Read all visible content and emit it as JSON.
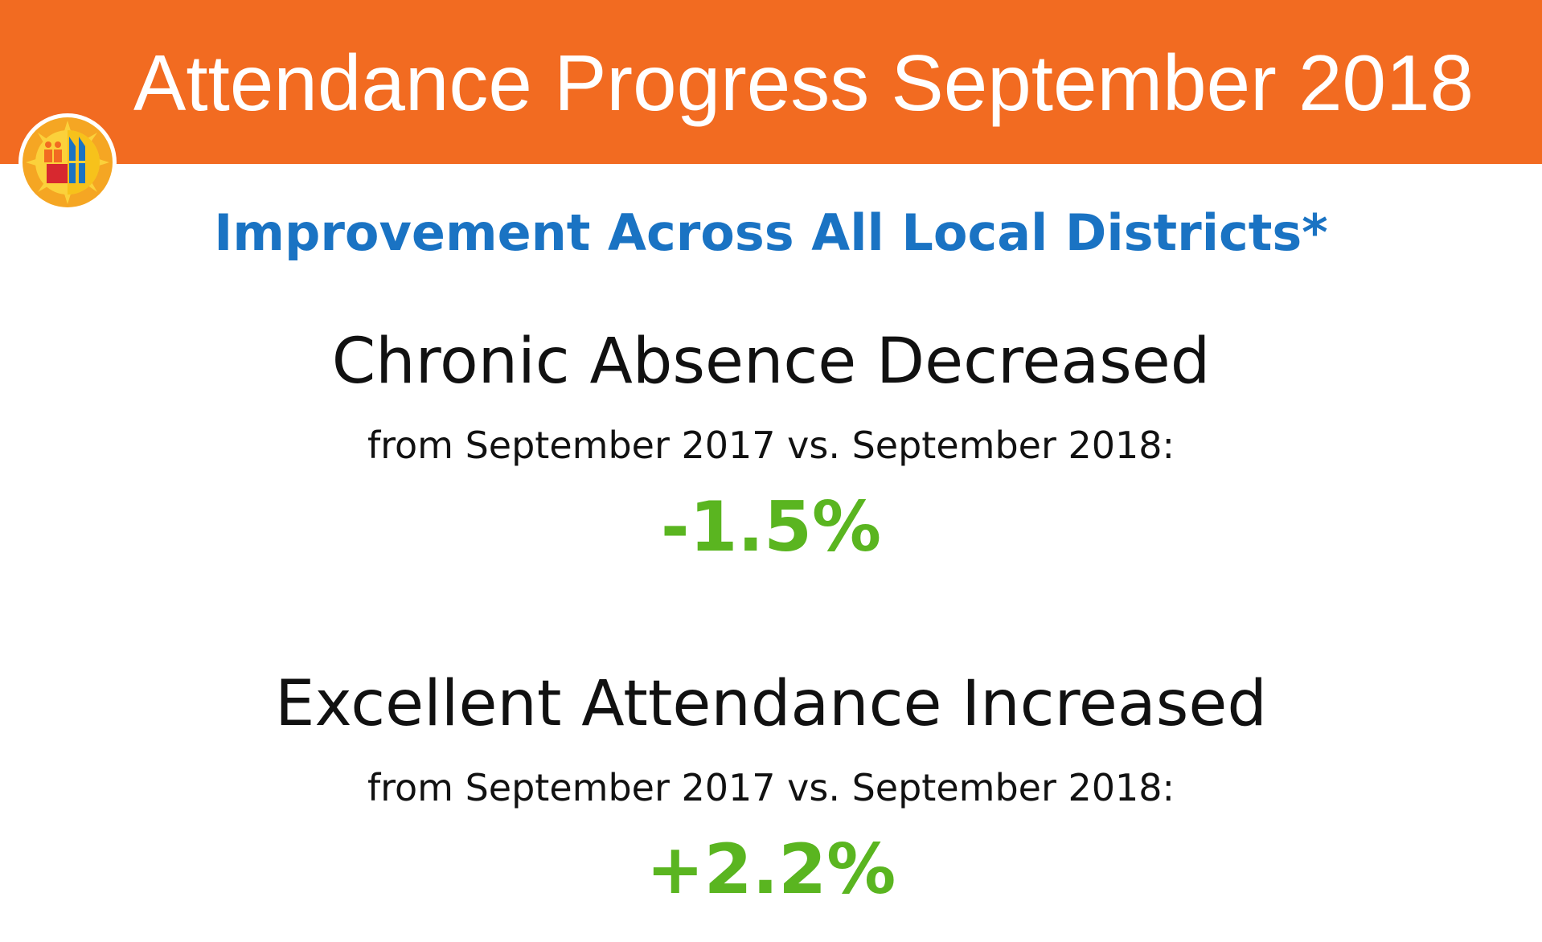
{
  "header": {
    "title": "Attendance Progress September 2018"
  },
  "subtitle": "Improvement Across All Local Districts*",
  "metrics": [
    {
      "heading": "Chronic Absence Decreased",
      "period": "from September 2017 vs. September 2018:",
      "value": "-1.5%"
    },
    {
      "heading": "Excellent Attendance Increased",
      "period": "from September 2017 vs. September 2018:",
      "value": "+2.2%"
    }
  ],
  "colors": {
    "header_band": "#f26b21",
    "subtitle": "#1a73c3",
    "value": "#5ab520",
    "text": "#111111"
  },
  "logo": {
    "icon": "district-seal-icon"
  }
}
